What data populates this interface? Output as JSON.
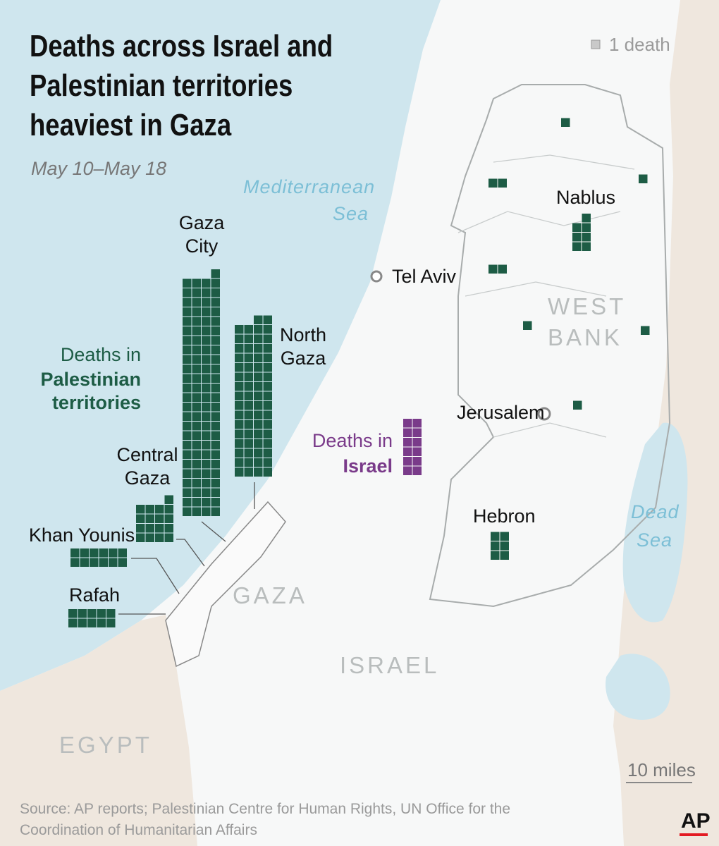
{
  "title_lines": [
    "Deaths across Israel and",
    "Palestinian territories",
    "heaviest in Gaza"
  ],
  "subtitle": "May 10–May 18",
  "legend": {
    "value": 1,
    "label": "1 death"
  },
  "palestinian": {
    "label": "Deaths in",
    "bold_lines": [
      "Palestinian",
      "territories"
    ],
    "color": "#1d5c45",
    "gaza_groups": [
      {
        "name_lines": [
          "Gaza",
          "City"
        ],
        "deaths": 101
      },
      {
        "name_lines": [
          "North",
          "Gaza"
        ],
        "deaths": 66
      },
      {
        "name_lines": [
          "Central",
          "Gaza"
        ],
        "deaths": 17
      },
      {
        "name_lines": [
          "Khan Younis"
        ],
        "deaths": 12
      },
      {
        "name_lines": [
          "Rafah"
        ],
        "deaths": 10
      }
    ],
    "west_bank_deaths": [
      1,
      2,
      1,
      7,
      2,
      1,
      1,
      1,
      6
    ]
  },
  "israel": {
    "label": "Deaths in",
    "bold": "Israel",
    "color": "#7a3b8a",
    "deaths": 12
  },
  "places": {
    "tel_aviv": "Tel Aviv",
    "jerusalem": "Jerusalem",
    "nablus": "Nablus",
    "hebron": "Hebron"
  },
  "regions": {
    "west_bank_lines": [
      "WEST",
      "BANK"
    ],
    "gaza": "GAZA",
    "israel": "ISRAEL",
    "egypt": "EGYPT"
  },
  "water": {
    "mediterranean_lines": [
      "Mediterranean",
      "Sea"
    ],
    "dead_sea_lines": [
      "Dead",
      "Sea"
    ]
  },
  "scale": "10 miles",
  "source_lines": [
    "Source: AP reports; Palestinian Centre for Human Rights, UN Office for the",
    "Coordination of Humanitarian Affairs"
  ],
  "logo": "AP"
}
